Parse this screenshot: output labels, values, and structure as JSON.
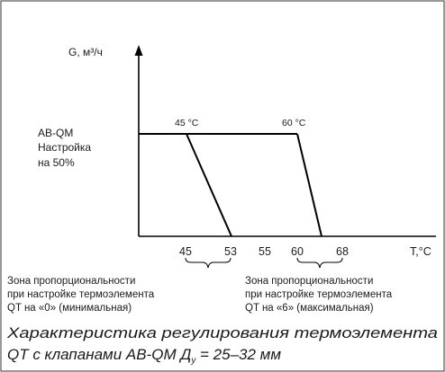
{
  "y_axis_label": "G, м³/ч",
  "x_axis_label": "Т,°С",
  "valve_setting": {
    "line1": "AB-QM",
    "line2": "Настройка",
    "line3": "на 50%"
  },
  "peak_labels": [
    "45 °C",
    "60 °C"
  ],
  "zone_min": {
    "line1": "Зона пропорциональности",
    "line2": "при настройке термоэлемента",
    "line3": "QT на «0» (минимальная)"
  },
  "zone_max": {
    "line1": "Зона пропорциональности",
    "line2": "при настройке термоэлемента",
    "line3": "QT на «6» (максимальная)"
  },
  "caption": {
    "line1": "Характеристика регулирования термоэлемента",
    "line2_prefix": "QT с клапанами AB-QM Д",
    "line2_sub": "у",
    "line2_suffix": " = 25–32 мм"
  },
  "chart_data": {
    "type": "line",
    "xlabel": "Т,°С",
    "ylabel": "G, м³/ч",
    "x_ticks": [
      45,
      53,
      55,
      60,
      68
    ],
    "series": [
      {
        "points": [
          [
            -1,
            1
          ],
          [
            45,
            1
          ],
          [
            53,
            0
          ]
        ]
      },
      {
        "points": [
          [
            60,
            1
          ],
          [
            68,
            0
          ]
        ]
      }
    ],
    "annotations": [
      "45 °C",
      "60 °C"
    ]
  }
}
